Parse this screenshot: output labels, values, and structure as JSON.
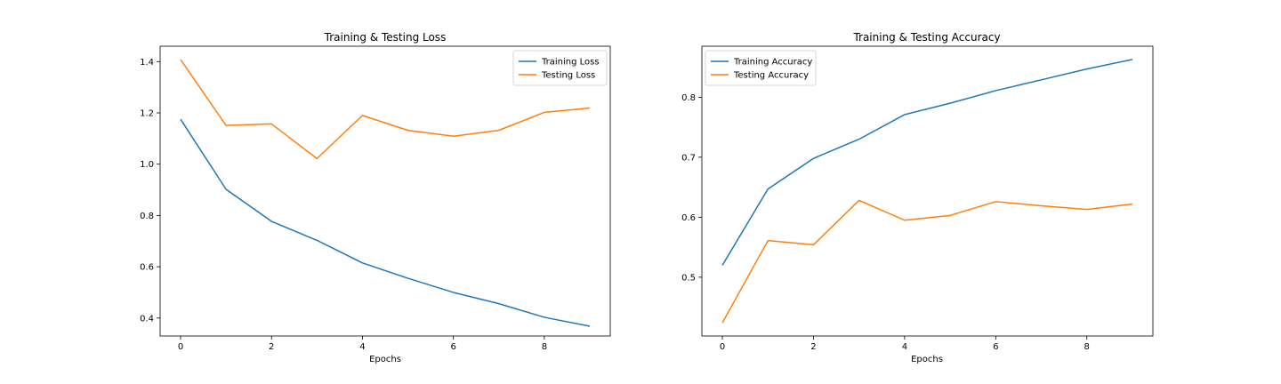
{
  "colors": {
    "series1": "#1f77b4",
    "series2": "#ff7f0e"
  },
  "chart_data": [
    {
      "type": "line",
      "title": "Training & Testing Loss",
      "xlabel": "Epochs",
      "ylabel": "",
      "xlim": [
        -0.45,
        9.45
      ],
      "ylim": [
        0.33,
        1.46
      ],
      "xticks": [
        0,
        2,
        4,
        6,
        8
      ],
      "yticks": [
        0.4,
        0.6,
        0.8,
        1.0,
        1.2,
        1.4
      ],
      "ytick_labels": [
        "0.4",
        "0.6",
        "0.8",
        "1.0",
        "1.2",
        "1.4"
      ],
      "grid": false,
      "legend_position": "upper-right",
      "x": [
        0,
        1,
        2,
        3,
        4,
        5,
        6,
        7,
        8,
        9
      ],
      "series": [
        {
          "name": "Training Loss",
          "values": [
            1.175,
            0.902,
            0.777,
            0.703,
            0.615,
            0.555,
            0.5,
            0.456,
            0.403,
            0.368
          ]
        },
        {
          "name": "Testing Loss",
          "values": [
            1.408,
            1.151,
            1.157,
            1.022,
            1.19,
            1.132,
            1.109,
            1.132,
            1.202,
            1.219
          ]
        }
      ]
    },
    {
      "type": "line",
      "title": "Training & Testing Accuracy",
      "xlabel": "Epochs",
      "ylabel": "",
      "xlim": [
        -0.45,
        9.45
      ],
      "ylim": [
        0.402,
        0.885
      ],
      "xticks": [
        0,
        2,
        4,
        6,
        8
      ],
      "yticks": [
        0.5,
        0.6,
        0.7,
        0.8
      ],
      "ytick_labels": [
        "0.5",
        "0.6",
        "0.7",
        "0.8"
      ],
      "grid": false,
      "legend_position": "upper-left",
      "x": [
        0,
        1,
        2,
        3,
        4,
        5,
        6,
        7,
        8,
        9
      ],
      "series": [
        {
          "name": "Training Accuracy",
          "values": [
            0.52,
            0.647,
            0.698,
            0.73,
            0.771,
            0.79,
            0.811,
            0.829,
            0.847,
            0.863
          ]
        },
        {
          "name": "Testing Accuracy",
          "values": [
            0.424,
            0.561,
            0.554,
            0.628,
            0.595,
            0.603,
            0.626,
            0.619,
            0.613,
            0.622
          ]
        }
      ]
    }
  ]
}
